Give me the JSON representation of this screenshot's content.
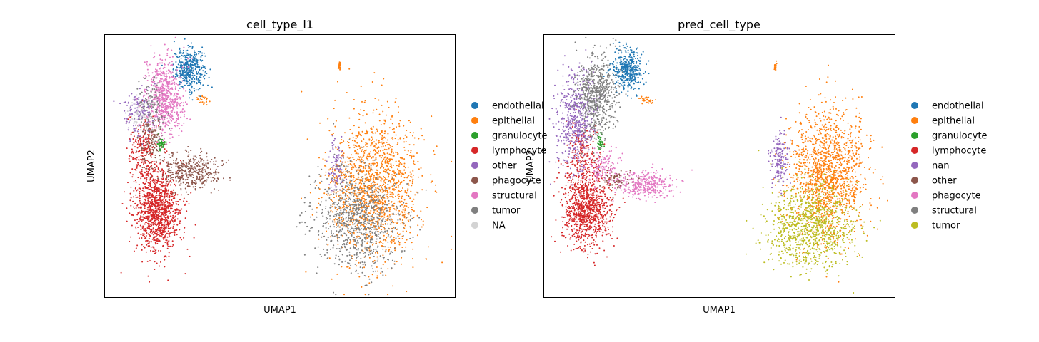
{
  "chart_data": [
    {
      "type": "scatter",
      "title": "cell_type_l1",
      "xlabel": "UMAP1",
      "ylabel": "UMAP2",
      "grid": false,
      "ticks": false,
      "legend_position": "right, outside plot",
      "legend": [
        {
          "name": "endothelial",
          "color": "#1f77b4"
        },
        {
          "name": "epithelial",
          "color": "#ff7f0e"
        },
        {
          "name": "granulocyte",
          "color": "#2ca02c"
        },
        {
          "name": "lymphocyte",
          "color": "#d62728"
        },
        {
          "name": "other",
          "color": "#9467bd"
        },
        {
          "name": "phagocyte",
          "color": "#8c564b"
        },
        {
          "name": "structural",
          "color": "#e377c2"
        },
        {
          "name": "tumor",
          "color": "#7f7f7f"
        },
        {
          "name": "NA",
          "color": "#d3d3d3"
        }
      ],
      "series": [
        {
          "name": "endothelial",
          "color": "#1f77b4",
          "clusters": [
            {
              "cx": 0.24,
              "cy": 0.87,
              "rx": 0.04,
              "ry": 0.07,
              "n": 420
            }
          ]
        },
        {
          "name": "epithelial",
          "color": "#ff7f0e",
          "clusters": [
            {
              "cx": 0.77,
              "cy": 0.42,
              "rx": 0.12,
              "ry": 0.25,
              "n": 1500
            },
            {
              "cx": 0.67,
              "cy": 0.88,
              "rx": 0.004,
              "ry": 0.015,
              "n": 25
            },
            {
              "cx": 0.28,
              "cy": 0.75,
              "rx": 0.02,
              "ry": 0.015,
              "n": 30
            }
          ]
        },
        {
          "name": "granulocyte",
          "color": "#2ca02c",
          "clusters": [
            {
              "cx": 0.16,
              "cy": 0.59,
              "rx": 0.008,
              "ry": 0.025,
              "n": 45
            }
          ]
        },
        {
          "name": "lymphocyte",
          "color": "#d62728",
          "clusters": [
            {
              "cx": 0.15,
              "cy": 0.33,
              "rx": 0.06,
              "ry": 0.14,
              "n": 1100
            },
            {
              "cx": 0.11,
              "cy": 0.55,
              "rx": 0.04,
              "ry": 0.12,
              "n": 250
            }
          ]
        },
        {
          "name": "other",
          "color": "#9467bd",
          "clusters": [
            {
              "cx": 0.1,
              "cy": 0.7,
              "rx": 0.04,
              "ry": 0.08,
              "n": 140
            },
            {
              "cx": 0.66,
              "cy": 0.5,
              "rx": 0.02,
              "ry": 0.1,
              "n": 100
            }
          ]
        },
        {
          "name": "phagocyte",
          "color": "#8c564b",
          "clusters": [
            {
              "cx": 0.24,
              "cy": 0.48,
              "rx": 0.08,
              "ry": 0.06,
              "n": 380
            },
            {
              "cx": 0.13,
              "cy": 0.6,
              "rx": 0.03,
              "ry": 0.08,
              "n": 120
            }
          ]
        },
        {
          "name": "structural",
          "color": "#e377c2",
          "clusters": [
            {
              "cx": 0.17,
              "cy": 0.76,
              "rx": 0.05,
              "ry": 0.13,
              "n": 650
            }
          ]
        },
        {
          "name": "tumor",
          "color": "#7f7f7f",
          "clusters": [
            {
              "cx": 0.72,
              "cy": 0.3,
              "rx": 0.11,
              "ry": 0.17,
              "n": 950
            },
            {
              "cx": 0.13,
              "cy": 0.72,
              "rx": 0.04,
              "ry": 0.1,
              "n": 120
            }
          ]
        },
        {
          "name": "NA",
          "color": "#d3d3d3",
          "clusters": [
            {
              "cx": 0.1,
              "cy": 0.7,
              "rx": 0.03,
              "ry": 0.05,
              "n": 50
            }
          ]
        }
      ]
    },
    {
      "type": "scatter",
      "title": "pred_cell_type",
      "xlabel": "UMAP1",
      "ylabel": "UMAP2",
      "grid": false,
      "ticks": false,
      "legend_position": "right, outside plot",
      "legend": [
        {
          "name": "endothelial",
          "color": "#1f77b4"
        },
        {
          "name": "epithelial",
          "color": "#ff7f0e"
        },
        {
          "name": "granulocyte",
          "color": "#2ca02c"
        },
        {
          "name": "lymphocyte",
          "color": "#d62728"
        },
        {
          "name": "nan",
          "color": "#9467bd"
        },
        {
          "name": "other",
          "color": "#8c564b"
        },
        {
          "name": "phagocyte",
          "color": "#e377c2"
        },
        {
          "name": "structural",
          "color": "#7f7f7f"
        },
        {
          "name": "tumor",
          "color": "#bcbd22"
        }
      ],
      "series": [
        {
          "name": "endothelial",
          "color": "#1f77b4",
          "clusters": [
            {
              "cx": 0.24,
              "cy": 0.87,
              "rx": 0.04,
              "ry": 0.07,
              "n": 420
            }
          ]
        },
        {
          "name": "epithelial",
          "color": "#ff7f0e",
          "clusters": [
            {
              "cx": 0.81,
              "cy": 0.47,
              "rx": 0.1,
              "ry": 0.22,
              "n": 1400
            },
            {
              "cx": 0.66,
              "cy": 0.88,
              "rx": 0.004,
              "ry": 0.015,
              "n": 25
            },
            {
              "cx": 0.29,
              "cy": 0.75,
              "rx": 0.02,
              "ry": 0.015,
              "n": 30
            }
          ]
        },
        {
          "name": "granulocyte",
          "color": "#2ca02c",
          "clusters": [
            {
              "cx": 0.16,
              "cy": 0.59,
              "rx": 0.008,
              "ry": 0.025,
              "n": 40
            }
          ]
        },
        {
          "name": "lymphocyte",
          "color": "#d62728",
          "clusters": [
            {
              "cx": 0.12,
              "cy": 0.34,
              "rx": 0.06,
              "ry": 0.13,
              "n": 1000
            },
            {
              "cx": 0.11,
              "cy": 0.55,
              "rx": 0.04,
              "ry": 0.1,
              "n": 200
            }
          ]
        },
        {
          "name": "nan",
          "color": "#9467bd",
          "clusters": [
            {
              "cx": 0.09,
              "cy": 0.68,
              "rx": 0.05,
              "ry": 0.17,
              "n": 550
            },
            {
              "cx": 0.67,
              "cy": 0.52,
              "rx": 0.025,
              "ry": 0.1,
              "n": 160
            }
          ]
        },
        {
          "name": "other",
          "color": "#8c564b",
          "clusters": [
            {
              "cx": 0.21,
              "cy": 0.45,
              "rx": 0.04,
              "ry": 0.04,
              "n": 80
            }
          ]
        },
        {
          "name": "phagocyte",
          "color": "#e377c2",
          "clusters": [
            {
              "cx": 0.29,
              "cy": 0.43,
              "rx": 0.07,
              "ry": 0.05,
              "n": 330
            },
            {
              "cx": 0.17,
              "cy": 0.5,
              "rx": 0.04,
              "ry": 0.06,
              "n": 120
            }
          ]
        },
        {
          "name": "structural",
          "color": "#7f7f7f",
          "clusters": [
            {
              "cx": 0.15,
              "cy": 0.77,
              "rx": 0.05,
              "ry": 0.14,
              "n": 650
            }
          ]
        },
        {
          "name": "tumor",
          "color": "#bcbd22",
          "clusters": [
            {
              "cx": 0.76,
              "cy": 0.27,
              "rx": 0.11,
              "ry": 0.15,
              "n": 1000
            }
          ]
        }
      ]
    }
  ]
}
